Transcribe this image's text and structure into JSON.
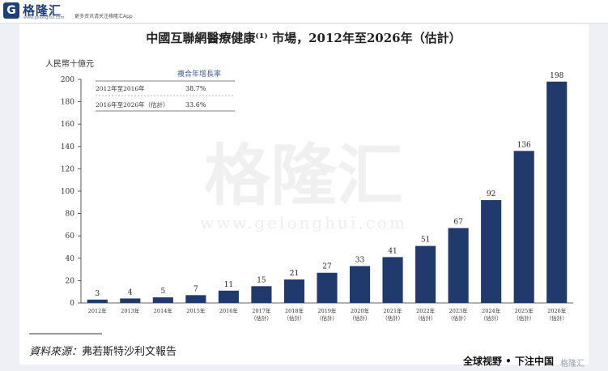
{
  "header": {
    "logo_mark": "G",
    "logo_name": "格隆汇",
    "logo_domain": "www.gelonghui.com",
    "slogan": "更多资讯请关注格隆汇App"
  },
  "chart_data": {
    "type": "bar",
    "title": "中國互聯網醫療健康⁽¹⁾ 市場，2012年至2026年（估計）",
    "ylabel": "人民幣十億元",
    "xlabel": "",
    "ylim": [
      0,
      200
    ],
    "yticks": [
      0,
      20,
      40,
      60,
      80,
      100,
      120,
      140,
      160,
      180,
      200
    ],
    "categories": [
      "2012年",
      "2013年",
      "2014年",
      "2015年",
      "2016年",
      "2017年",
      "2018年",
      "2019年",
      "2020年",
      "2021年",
      "2022年",
      "2023年",
      "2024年",
      "2025年",
      "2026年"
    ],
    "estimate_flags": [
      false,
      false,
      false,
      false,
      false,
      true,
      true,
      true,
      true,
      true,
      true,
      true,
      true,
      true,
      true
    ],
    "estimate_label": "（估計）",
    "values": [
      3,
      4,
      5,
      7,
      11,
      15,
      21,
      27,
      33,
      41,
      51,
      67,
      92,
      136,
      198
    ],
    "bar_color": "#1f3a6b",
    "grid": false,
    "cagr_table": {
      "header": "複合年增長率",
      "rows": [
        {
          "period": "2012年至2016年",
          "value": "38.7%"
        },
        {
          "period": "2016年至2026年（估計）",
          "value": "33.6%"
        }
      ]
    }
  },
  "watermark": {
    "text": "格隆汇",
    "url": "www.gelonghui.com"
  },
  "footer": {
    "source_label": "資料來源：",
    "source_text": "弗若斯特沙利文報告"
  },
  "bottom_badge": "全球视野 • 下注中国",
  "bottom_watermark": "格隆汇"
}
